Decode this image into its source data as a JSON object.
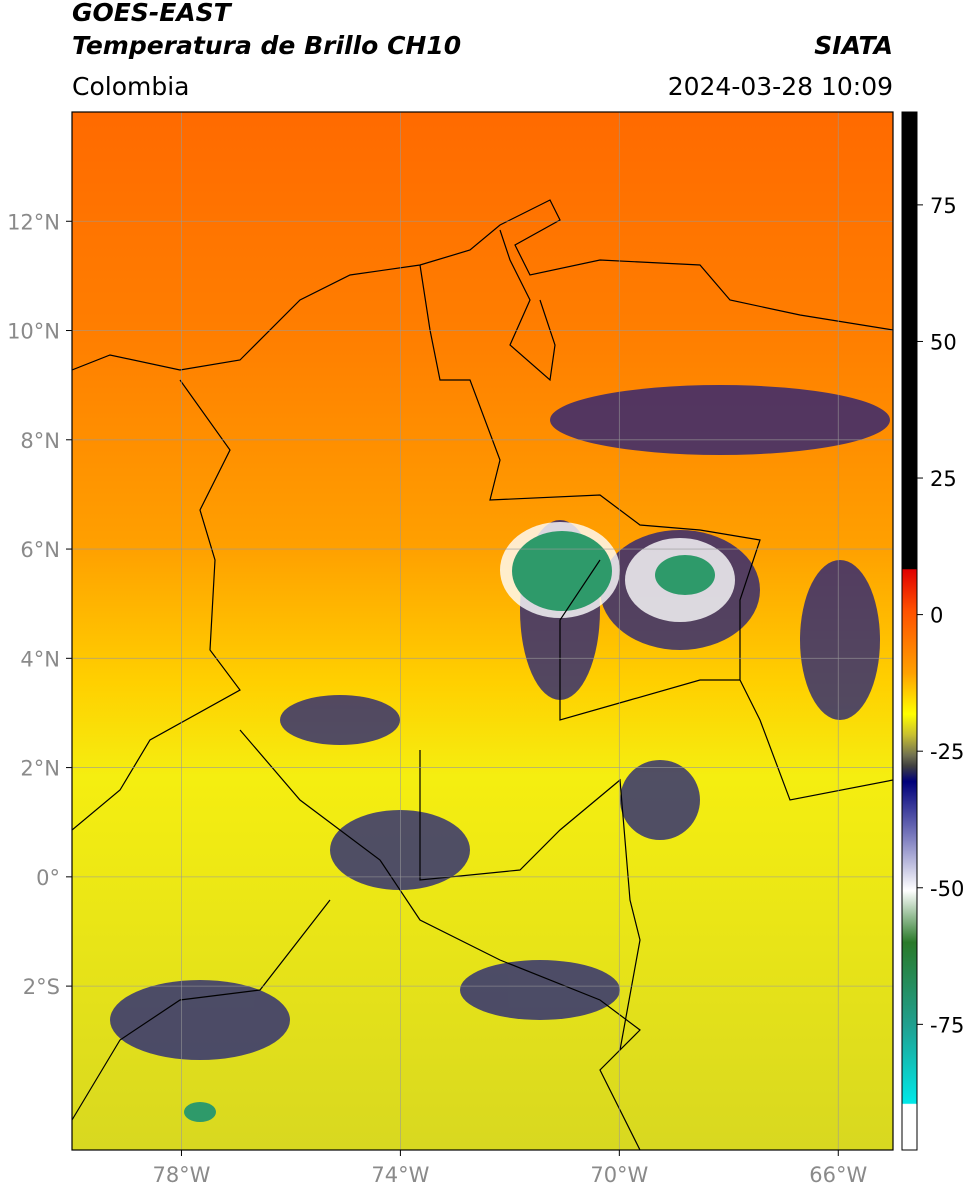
{
  "header": {
    "title_line1": "GOES-EAST",
    "title_line2": "Temperatura de Brillo CH10",
    "region": "Colombia",
    "source": "SIATA",
    "datetime": "2024-03-28 10:09"
  },
  "map": {
    "lat_range": [
      -5,
      14
    ],
    "lon_range": [
      -80,
      -65
    ],
    "lat_ticks": [
      {
        "value": 12,
        "label": "12°N"
      },
      {
        "value": 10,
        "label": "10°N"
      },
      {
        "value": 8,
        "label": "8°N"
      },
      {
        "value": 6,
        "label": "6°N"
      },
      {
        "value": 4,
        "label": "4°N"
      },
      {
        "value": 2,
        "label": "2°N"
      },
      {
        "value": 0,
        "label": "0°"
      },
      {
        "value": -2,
        "label": "2°S"
      }
    ],
    "lon_ticks": [
      {
        "value": -78,
        "label": "78°W"
      },
      {
        "value": -74,
        "label": "74°W"
      },
      {
        "value": -70,
        "label": "70°W"
      },
      {
        "value": -66,
        "label": "66°W"
      }
    ]
  },
  "colorbar": {
    "range": [
      -98,
      92
    ],
    "ticks": [
      75,
      50,
      25,
      0,
      -25,
      -50,
      -75
    ]
  }
}
